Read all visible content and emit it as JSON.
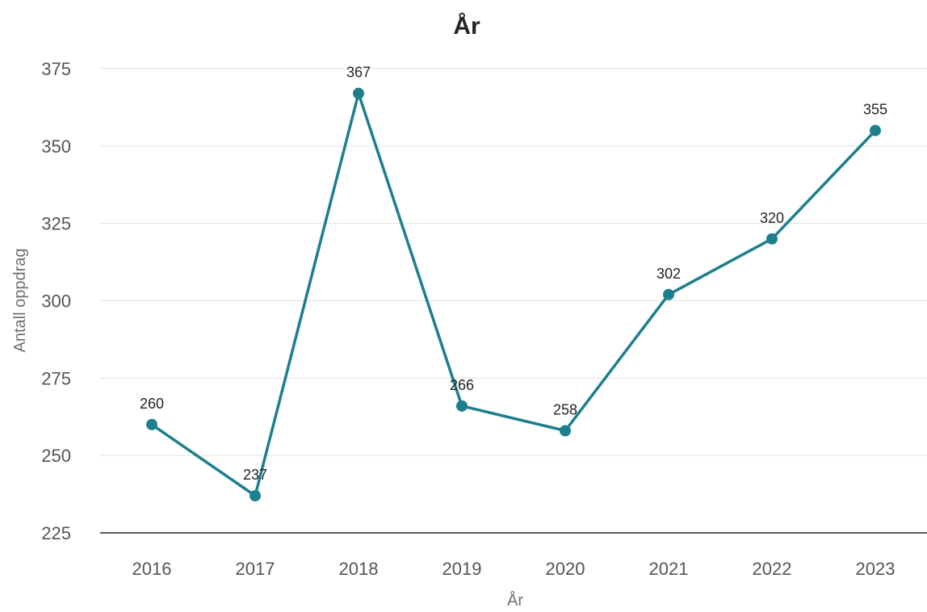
{
  "chart_data": {
    "type": "line",
    "title": "År",
    "xlabel": "År",
    "ylabel": "Antall oppdrag",
    "categories": [
      "2016",
      "2017",
      "2018",
      "2019",
      "2020",
      "2021",
      "2022",
      "2023"
    ],
    "series": [
      {
        "values": [
          260,
          237,
          367,
          266,
          258,
          302,
          320,
          355
        ]
      }
    ],
    "data_labels": [
      "260",
      "237",
      "367",
      "266",
      "258",
      "302",
      "320",
      "355"
    ],
    "ylim": [
      225,
      375
    ],
    "yticks": [
      "225",
      "250",
      "275",
      "300",
      "325",
      "350",
      "375"
    ],
    "grid": true,
    "legend": "none",
    "colors": {
      "series": "#1d7f8e"
    }
  }
}
